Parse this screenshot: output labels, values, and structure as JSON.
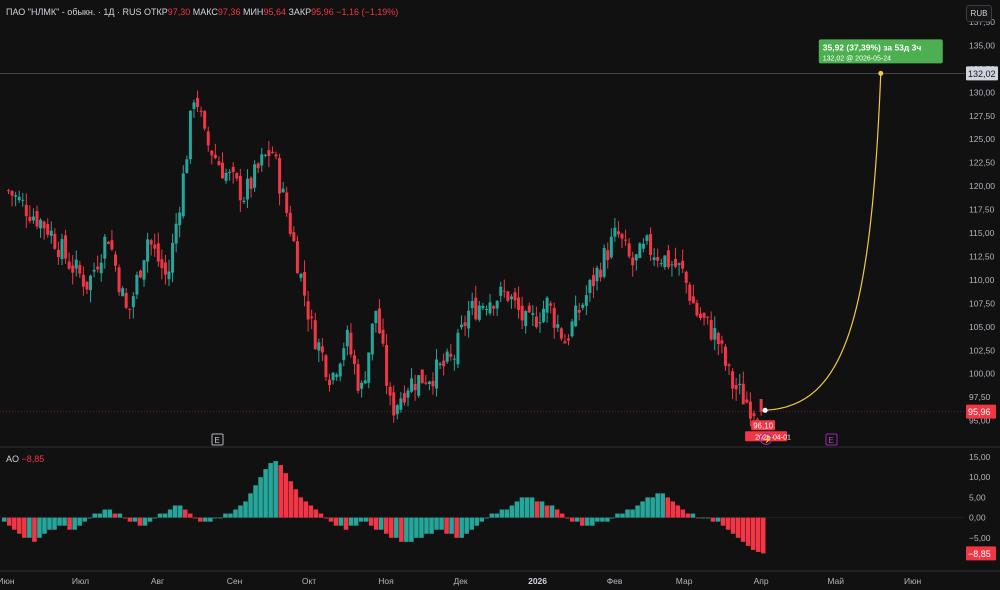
{
  "header": {
    "symbol": "ПАО \"НЛМК\" - обыкн. · 1Д · RUS",
    "open_label": "ОТКР",
    "open": "97,30",
    "high_label": "МАКС",
    "high": "97,36",
    "low_label": "МИН",
    "low": "95,64",
    "close_label": "ЗАКР",
    "close": "95,96",
    "change": "−1,16 (−1,19%)"
  },
  "currency_button": "RUB",
  "ao": {
    "label": "AO",
    "value": "−8,85",
    "axis_badge": "−8,85"
  },
  "price_axis_badges": {
    "last": "95,96",
    "target": "132,02"
  },
  "projection": {
    "line1": "35,92 (37,39%) за 53д 3ч",
    "line2": "132,02 @ 2026-05-24",
    "start_label": "96,10",
    "start_date": "2026-04-01"
  },
  "event_icons": [
    "E",
    "E"
  ],
  "colors": {
    "up": "#26a69a",
    "down": "#f23645",
    "bg": "#111111",
    "curve": "#f5c842",
    "badge_green": "#4caf50"
  },
  "chart_data": [
    {
      "type": "candlestick",
      "title": "",
      "ylim": [
        94,
        137.5
      ],
      "y_ticks": [
        "95,00",
        "97,50",
        "100,00",
        "102,50",
        "105,00",
        "107,50",
        "110,00",
        "112,50",
        "115,00",
        "117,50",
        "120,00",
        "122,50",
        "125,00",
        "127,50",
        "130,00",
        "132,50",
        "135,00",
        "137,50"
      ],
      "x_tick_labels": [
        "Июн",
        "Июл",
        "Авг",
        "Сен",
        "Окт",
        "Ноя",
        "Дек",
        "2026",
        "Фев",
        "Мар",
        "Апр",
        "Май",
        "Июн"
      ],
      "close_path": [
        [
          "2025-06-02",
          119.5
        ],
        [
          "2025-06-10",
          117.5
        ],
        [
          "2025-06-18",
          115.5
        ],
        [
          "2025-06-26",
          112.0
        ],
        [
          "2025-07-04",
          109.5
        ],
        [
          "2025-07-12",
          115.0
        ],
        [
          "2025-07-20",
          106.0
        ],
        [
          "2025-07-28",
          114.5
        ],
        [
          "2025-08-05",
          110.0
        ],
        [
          "2025-08-12",
          122.0
        ],
        [
          "2025-08-16",
          130.5
        ],
        [
          "2025-08-20",
          125.0
        ],
        [
          "2025-08-28",
          121.5
        ],
        [
          "2025-09-05",
          119.0
        ],
        [
          "2025-09-12",
          122.5
        ],
        [
          "2025-09-16",
          124.0
        ],
        [
          "2025-09-24",
          115.0
        ],
        [
          "2025-10-02",
          105.0
        ],
        [
          "2025-10-10",
          99.5
        ],
        [
          "2025-10-16",
          104.0
        ],
        [
          "2025-10-22",
          98.0
        ],
        [
          "2025-10-28",
          107.0
        ],
        [
          "2025-11-03",
          96.0
        ],
        [
          "2025-11-10",
          99.0
        ],
        [
          "2025-11-20",
          100.0
        ],
        [
          "2025-11-28",
          101.5
        ],
        [
          "2025-12-04",
          106.5
        ],
        [
          "2025-12-12",
          108.0
        ],
        [
          "2025-12-20",
          108.5
        ],
        [
          "2025-12-28",
          105.0
        ],
        [
          "2026-01-05",
          107.5
        ],
        [
          "2026-01-12",
          103.5
        ],
        [
          "2026-01-20",
          108.0
        ],
        [
          "2026-01-28",
          112.5
        ],
        [
          "2026-02-02",
          115.0
        ],
        [
          "2026-02-08",
          111.5
        ],
        [
          "2026-02-14",
          113.5
        ],
        [
          "2026-02-20",
          112.5
        ],
        [
          "2026-02-28",
          111.0
        ],
        [
          "2026-03-06",
          106.5
        ],
        [
          "2026-03-14",
          104.0
        ],
        [
          "2026-03-20",
          99.0
        ],
        [
          "2026-03-28",
          96.5
        ],
        [
          "2026-04-01",
          95.96
        ]
      ],
      "projection_points": [
        [
          "2026-04-01",
          96.1
        ],
        [
          "2026-05-24",
          132.02
        ]
      ]
    },
    {
      "type": "histogram",
      "name": "AO",
      "ylim": [
        -10,
        15
      ],
      "y_ticks": [
        "−5,00",
        "0,00",
        "5,00",
        "10,00",
        "15,00"
      ],
      "values": [
        -1,
        -2,
        -3,
        -4,
        -5,
        -5,
        -6,
        -5,
        -4,
        -3,
        -3,
        -2,
        -2,
        -3,
        -3,
        -2,
        -1,
        0,
        1,
        1,
        2,
        2,
        1,
        1,
        0,
        -1,
        -1,
        -2,
        -2,
        -1,
        0,
        1,
        1,
        2,
        3,
        3,
        2,
        1,
        0,
        -1,
        -1,
        -1,
        0,
        0,
        1,
        1,
        2,
        3,
        4,
        6,
        8,
        10,
        12,
        13.5,
        14,
        13,
        11,
        9,
        7,
        5,
        4,
        3,
        2,
        1,
        0,
        -1,
        -2,
        -2,
        -3,
        -2,
        -2,
        -1,
        -1,
        -2,
        -3,
        -3,
        -4,
        -5,
        -5,
        -6,
        -6,
        -6,
        -5,
        -5,
        -4,
        -4,
        -3,
        -3,
        -4,
        -4,
        -5,
        -5,
        -4,
        -3,
        -2,
        -1,
        0,
        1,
        1,
        2,
        2,
        3,
        4,
        5,
        5,
        5,
        4,
        4,
        3,
        3,
        2,
        1,
        0,
        -1,
        -1,
        -2,
        -2,
        -2,
        -1,
        -1,
        -1,
        0,
        1,
        1,
        2,
        2,
        3,
        4,
        5,
        5,
        6,
        6,
        5,
        4,
        3,
        2,
        1,
        1,
        0,
        0,
        0,
        -1,
        -1,
        -2,
        -3,
        -4,
        -5,
        -6,
        -7,
        -8,
        -8.5,
        -8.85
      ]
    }
  ]
}
